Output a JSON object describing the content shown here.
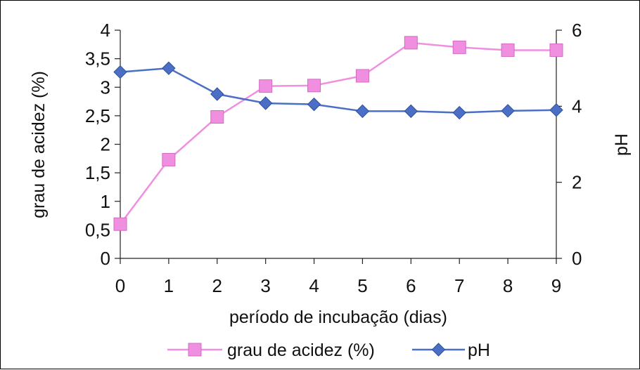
{
  "chart_data": {
    "type": "line",
    "x": [
      0,
      1,
      2,
      3,
      4,
      5,
      6,
      7,
      8,
      9
    ],
    "xlabel": "período de incubação (dias)",
    "ylabel_left": "grau de acidez (%)",
    "ylabel_right": "pH",
    "ylim_left": [
      0,
      4
    ],
    "ylim_right": [
      0,
      6
    ],
    "yticks_left": [
      "0",
      "0,5",
      "1",
      "1,5",
      "2",
      "2,5",
      "3",
      "3,5",
      "4"
    ],
    "yticks_right": [
      "0",
      "2",
      "4",
      "6"
    ],
    "xticks": [
      "0",
      "1",
      "2",
      "3",
      "4",
      "5",
      "6",
      "7",
      "8",
      "9"
    ],
    "grid": false,
    "legend_position": "bottom",
    "series": [
      {
        "name": "grau de acidez (%)",
        "axis": "left",
        "color": "#f08ee0",
        "marker": "square",
        "values": [
          0.6,
          1.73,
          2.48,
          3.02,
          3.03,
          3.2,
          3.78,
          3.7,
          3.65,
          3.65
        ]
      },
      {
        "name": "pH",
        "axis": "right",
        "color": "#4a6fc4",
        "marker": "diamond",
        "values": [
          4.9,
          5.0,
          4.32,
          4.08,
          4.05,
          3.87,
          3.87,
          3.83,
          3.88,
          3.9
        ]
      }
    ]
  }
}
